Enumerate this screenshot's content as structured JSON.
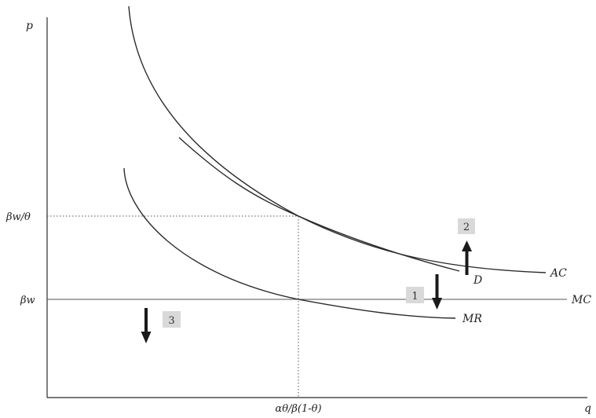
{
  "axes": {
    "y_label": "p",
    "x_label": "q"
  },
  "ticks": {
    "y_upper": "βw/θ",
    "y_lower": "βw",
    "x_mid": "αθ/β(1-θ)"
  },
  "curves": {
    "ac": "AC",
    "d": "D",
    "mc": "MC",
    "mr": "MR"
  },
  "badges": {
    "one": "1",
    "two": "2",
    "three": "3"
  },
  "arrows": {
    "one": "down",
    "two": "up",
    "three": "down"
  }
}
